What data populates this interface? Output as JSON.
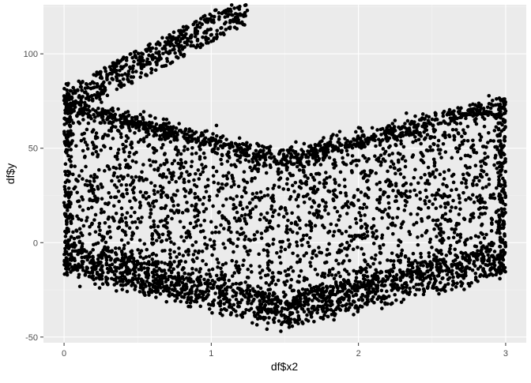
{
  "chart_data": {
    "type": "scatter",
    "title": "",
    "xlabel": "df$x2",
    "ylabel": "df$y",
    "xlim": [
      -0.14,
      3.14
    ],
    "ylim": [
      -53,
      126
    ],
    "x_ticks": [
      0,
      1,
      2,
      3
    ],
    "y_ticks": [
      -50,
      0,
      50,
      100
    ],
    "x_tick_labels": [
      "0",
      "1",
      "2",
      "3"
    ],
    "y_tick_labels": [
      "-50",
      "0",
      "50",
      "100"
    ],
    "grid": true,
    "theme": "ggplot2 grey",
    "colors": {
      "panel": "#ebebeb",
      "grid_major": "#ffffff",
      "grid_minor": "#f4f4f4",
      "point": "#000000",
      "axis_text": "#4d4d4d",
      "axis_title": "#000000"
    },
    "point_count": 5000,
    "regions": [
      {
        "x": [
          0.0,
          0.25,
          0.5,
          0.75,
          1.0,
          1.25
        ],
        "y": [
          77,
          86,
          94,
          103,
          112,
          122
        ],
        "description": "upper-left rising band"
      },
      {
        "x": [
          0.0,
          0.5,
          1.0,
          1.5,
          2.0,
          2.5,
          3.0
        ],
        "y": [
          74,
          65,
          55,
          45,
          55,
          65,
          75
        ],
        "description": "V-shaped dense band"
      },
      {
        "x": [
          0.0,
          0.5,
          1.0,
          1.5,
          2.0,
          2.5,
          3.0
        ],
        "y": [
          -10,
          -20,
          -30,
          -38,
          -30,
          -20,
          -10
        ],
        "description": "lower dense band"
      }
    ]
  }
}
